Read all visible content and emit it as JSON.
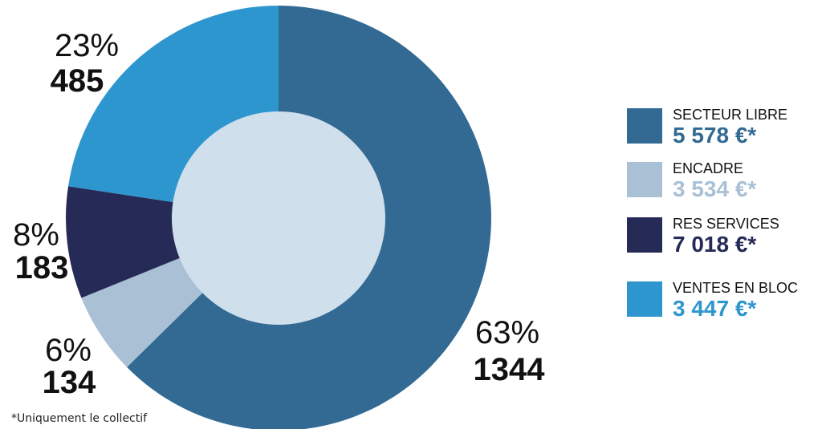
{
  "chart_data": {
    "type": "donut",
    "categories": [
      "SECTEUR LIBRE",
      "ENCADRE",
      "RES SERVICES",
      "VENTES EN BLOC"
    ],
    "values": [
      1344,
      134,
      183,
      485
    ],
    "percent_labels": [
      "63%",
      "6%",
      "8%",
      "23%"
    ],
    "count_labels": [
      "1344",
      "134",
      "183",
      "485"
    ],
    "colors": [
      "#336a93",
      "#a9c0d5",
      "#262a57",
      "#2e96cf"
    ],
    "legend_placement": "right",
    "legend": [
      {
        "label": "SECTEUR LIBRE",
        "value": "5 578 €*",
        "color": "#336a93"
      },
      {
        "label": "ENCADRE",
        "value": "3 534 €*",
        "color": "#a9c0d5"
      },
      {
        "label": "RES SERVICES",
        "value": "7 018 €*",
        "color": "#262a57"
      },
      {
        "label": "VENTES EN BLOC",
        "value": "3 447 €*",
        "color": "#2e96cf"
      }
    ]
  },
  "footnote": "*Uniquement le collectif",
  "center_color": "#cfdfeb"
}
